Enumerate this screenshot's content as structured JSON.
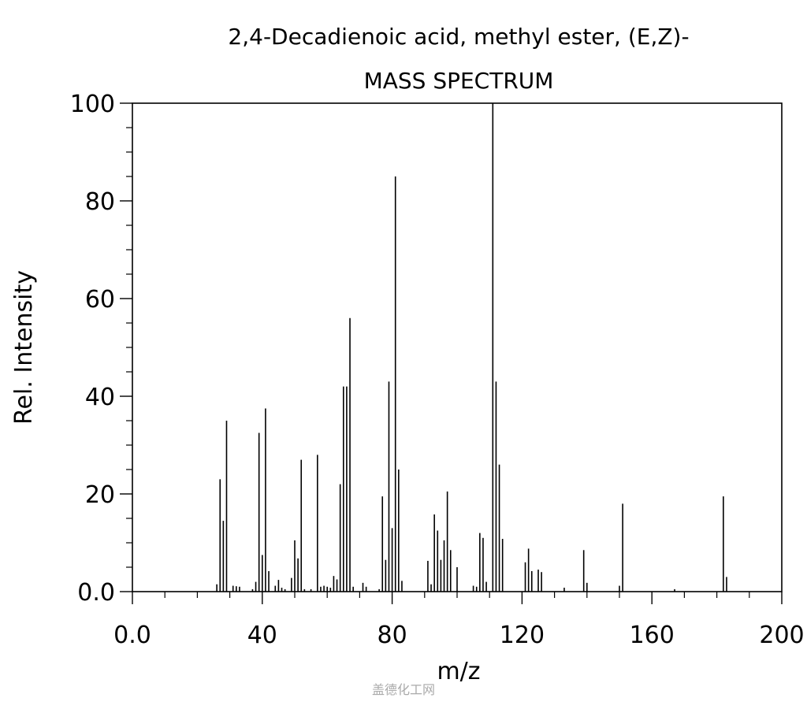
{
  "chart_data": {
    "type": "bar",
    "title": "2,4-Decadienoic acid, methyl ester, (E,Z)-",
    "subtitle": "MASS SPECTRUM",
    "xlabel": "m/z",
    "ylabel": "Rel. Intensity",
    "xlim": [
      0,
      200
    ],
    "ylim": [
      0,
      100
    ],
    "xticks": [
      0,
      40,
      80,
      120,
      160,
      200
    ],
    "xtick_labels": [
      "0.0",
      "40",
      "80",
      "120",
      "160",
      "200"
    ],
    "yticks": [
      0,
      20,
      40,
      60,
      80,
      100
    ],
    "ytick_labels": [
      "0.0",
      "20",
      "40",
      "60",
      "80",
      "100"
    ],
    "grid": false,
    "x": [
      26,
      27,
      28,
      29,
      31,
      32,
      33,
      37,
      38,
      39,
      40,
      41,
      42,
      44,
      45,
      46,
      47,
      49,
      50,
      51,
      52,
      53,
      55,
      57,
      58,
      59,
      60,
      61,
      62,
      63,
      64,
      65,
      66,
      67,
      68,
      71,
      72,
      76,
      77,
      78,
      79,
      80,
      81,
      82,
      83,
      91,
      92,
      93,
      94,
      95,
      96,
      97,
      98,
      100,
      105,
      106,
      107,
      108,
      109,
      111,
      112,
      113,
      114,
      121,
      122,
      123,
      125,
      126,
      133,
      139,
      140,
      150,
      151,
      167,
      182,
      183
    ],
    "values": [
      1.5,
      23,
      14.5,
      35,
      1.2,
      1.1,
      1,
      0.5,
      2,
      32.5,
      7.5,
      37.5,
      4.2,
      1.2,
      2.4,
      0.8,
      0.5,
      2.8,
      10.5,
      6.8,
      27,
      0.5,
      0.5,
      28,
      1,
      1.2,
      1,
      0.8,
      3.2,
      2.5,
      22,
      42,
      42,
      56,
      1,
      1.8,
      1,
      0.5,
      19.5,
      6.5,
      43,
      13,
      85,
      25,
      2.2,
      6.3,
      1.5,
      15.8,
      12.5,
      6.5,
      10.5,
      20.5,
      8.5,
      5,
      1.2,
      1,
      12,
      11,
      2,
      100,
      43,
      26,
      10.8,
      6,
      8.8,
      4.2,
      4.5,
      4,
      0.8,
      8.5,
      1.8,
      1.2,
      18,
      0.5,
      19.5,
      3
    ]
  },
  "watermark": "盖德化工网",
  "colors": {
    "bar": "#000000",
    "axis": "#000000",
    "background": "#ffffff"
  }
}
